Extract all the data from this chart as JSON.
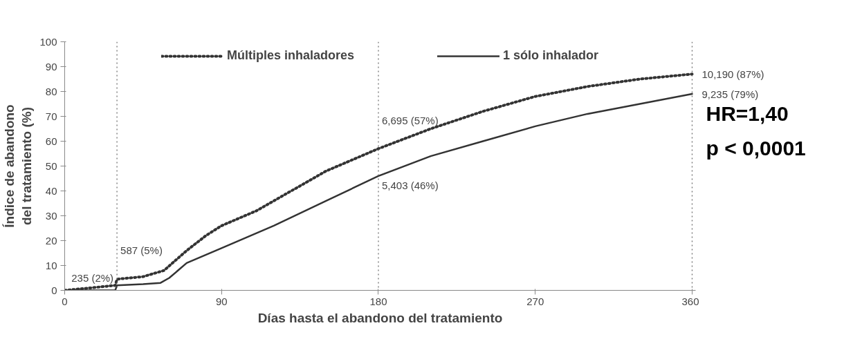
{
  "chart_data": {
    "type": "line",
    "xlabel": "Días hasta el abandono del tratamiento",
    "ylabel": "Índice de abandono del tratamiento (%)",
    "xlim": [
      0,
      362
    ],
    "xticks": [
      0,
      90,
      180,
      270,
      360
    ],
    "ylim": [
      0,
      100
    ],
    "yticks": [
      0,
      10,
      20,
      30,
      40,
      50,
      60,
      70,
      80,
      90,
      100
    ],
    "grid": false,
    "legend": "top",
    "series": [
      {
        "name": "Múltiples inhaladores",
        "color": "#333333",
        "line_style": "dotted",
        "x": [
          0,
          15,
          29,
          30,
          45,
          57,
          70,
          81,
          90,
          110,
          120,
          150,
          180,
          210,
          240,
          270,
          300,
          330,
          360
        ],
        "values": [
          0,
          1,
          2,
          4.5,
          5.5,
          8,
          16,
          22,
          26,
          32,
          36,
          48,
          57,
          65,
          72,
          78,
          82,
          85,
          87
        ]
      },
      {
        "name": "1 sólo inhalador",
        "color": "#333333",
        "line_style": "solid",
        "x": [
          0,
          29,
          30,
          45,
          55,
          60,
          70,
          90,
          120,
          150,
          180,
          210,
          240,
          270,
          300,
          330,
          360
        ],
        "values": [
          0,
          0,
          2,
          2.5,
          3,
          5,
          11,
          17,
          26,
          36,
          46,
          54,
          60,
          66,
          71,
          75,
          79
        ]
      }
    ],
    "ref_lines": [
      {
        "axis": "x",
        "value": 30,
        "line_style": "dotted"
      },
      {
        "axis": "x",
        "value": 180,
        "line_style": "dotted"
      },
      {
        "axis": "x",
        "value": 360,
        "line_style": "dotted"
      }
    ],
    "annotations": [
      {
        "text": "587 (5%)",
        "x": 30,
        "y": 5
      },
      {
        "text": "235 (2%)",
        "x": 30,
        "y": 2
      },
      {
        "text": "6,695 (57%)",
        "x": 180,
        "y": 57
      },
      {
        "text": "5,403 (46%)",
        "x": 180,
        "y": 46
      },
      {
        "text": "10,190 (87%)",
        "x": 360,
        "y": 87
      },
      {
        "text": "9,235 (79%)",
        "x": 360,
        "y": 79
      },
      "HR=1,40",
      "p < 0,0001"
    ]
  }
}
